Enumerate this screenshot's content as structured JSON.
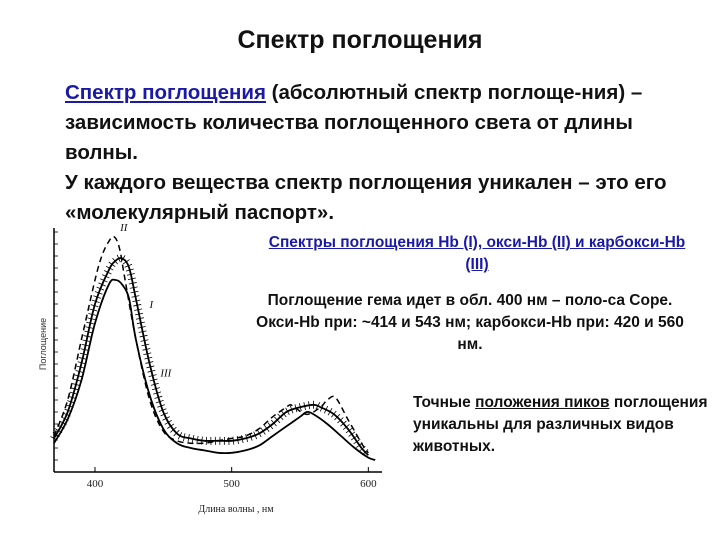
{
  "title": "Спектр поглощения",
  "intro": {
    "term": "Спектр поглощения",
    "definition_rest": " (абсолютный спектр поглоще-ния) – зависимость количества поглощенного света от длины волны.",
    "passport": "У каждого вещества спектр поглощения уникален – это его «молекулярный паспорт»."
  },
  "caption_spectra": "Спектры поглощения Hb (I), окси-Hb (II) и карбокси-Hb (III)",
  "caption_heme": "Поглощение гема идет в обл. 400 нм – поло-са Соре.  Окси-Hb при: ~414 и 543 нм; карбокси-Hb при: 420 и 560 нм.",
  "caption_peaks": {
    "before": "Точные ",
    "underlined": "положения пиков",
    "after": " поглощения уникальны для различных видов животных."
  },
  "chart_data": {
    "type": "line",
    "xlabel": "Длина волны , нм",
    "ylabel": "Поглощение",
    "xticks": [
      400,
      500,
      600
    ],
    "xlim": [
      370,
      610
    ],
    "ylim": [
      0,
      1
    ],
    "series": [
      {
        "name": "I",
        "style": "solid",
        "x": [
          370,
          380,
          390,
          400,
          410,
          415,
          420,
          425,
          430,
          440,
          450,
          460,
          470,
          480,
          490,
          500,
          510,
          520,
          530,
          540,
          550,
          555,
          560,
          570,
          580,
          590,
          600,
          605
        ],
        "y": [
          0.12,
          0.22,
          0.38,
          0.62,
          0.78,
          0.8,
          0.78,
          0.72,
          0.55,
          0.32,
          0.18,
          0.12,
          0.1,
          0.09,
          0.08,
          0.08,
          0.09,
          0.11,
          0.15,
          0.19,
          0.23,
          0.25,
          0.24,
          0.2,
          0.15,
          0.1,
          0.06,
          0.05
        ]
      },
      {
        "name": "II",
        "style": "dashed",
        "x": [
          370,
          380,
          390,
          400,
          405,
          410,
          414,
          418,
          422,
          430,
          440,
          450,
          460,
          470,
          480,
          490,
          500,
          510,
          520,
          530,
          540,
          543,
          546,
          555,
          565,
          570,
          576,
          585,
          595,
          600
        ],
        "y": [
          0.15,
          0.3,
          0.55,
          0.8,
          0.9,
          0.96,
          0.98,
          0.93,
          0.8,
          0.55,
          0.3,
          0.17,
          0.13,
          0.12,
          0.12,
          0.13,
          0.14,
          0.15,
          0.18,
          0.23,
          0.27,
          0.28,
          0.27,
          0.24,
          0.27,
          0.3,
          0.31,
          0.22,
          0.12,
          0.08
        ]
      },
      {
        "name": "III",
        "style": "hatched",
        "x": [
          370,
          380,
          390,
          400,
          410,
          415,
          420,
          425,
          430,
          440,
          450,
          460,
          470,
          480,
          490,
          500,
          510,
          520,
          530,
          540,
          550,
          560,
          565,
          575,
          585,
          595,
          600
        ],
        "y": [
          0.14,
          0.25,
          0.45,
          0.7,
          0.84,
          0.88,
          0.89,
          0.85,
          0.72,
          0.45,
          0.25,
          0.16,
          0.14,
          0.13,
          0.13,
          0.13,
          0.14,
          0.16,
          0.2,
          0.25,
          0.27,
          0.28,
          0.27,
          0.24,
          0.18,
          0.1,
          0.07
        ]
      }
    ]
  }
}
